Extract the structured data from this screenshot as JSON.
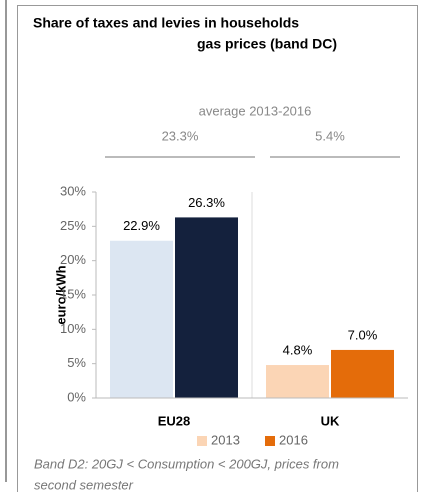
{
  "chart_data": {
    "type": "bar",
    "title": [
      "Share of taxes and levies in households",
      "gas prices (band DC)"
    ],
    "annotation": {
      "label": "average 2013-2016",
      "groups": [
        "23.3%",
        "5.4%"
      ]
    },
    "ylabel": "euro/kWh",
    "categories": [
      "EU28",
      "UK"
    ],
    "series": [
      {
        "name": "2013",
        "color": "#fbd5b5",
        "bar_colors": [
          "#dce6f2",
          "#fbd5b5"
        ],
        "values": [
          22.9,
          4.8
        ],
        "value_labels": [
          "22.9%",
          "4.8%"
        ]
      },
      {
        "name": "2016",
        "color": "#e46c0a",
        "bar_colors": [
          "#14213d",
          "#e46c0a"
        ],
        "values": [
          26.3,
          7.0
        ],
        "value_labels": [
          "26.3%",
          "7.0%"
        ]
      }
    ],
    "ylim": [
      0,
      30
    ],
    "yticks": [
      {
        "value": 0,
        "label": "0%"
      },
      {
        "value": 5,
        "label": "5%"
      },
      {
        "value": 10,
        "label": "10%"
      },
      {
        "value": 15,
        "label": "15%"
      },
      {
        "value": 20,
        "label": "20%"
      },
      {
        "value": 25,
        "label": "25%"
      },
      {
        "value": 30,
        "label": "30%"
      }
    ],
    "grid": false,
    "legend": "bottom",
    "footnote": [
      "Band D2: 20GJ < Consumption < 200GJ, prices from",
      "second semester"
    ]
  }
}
